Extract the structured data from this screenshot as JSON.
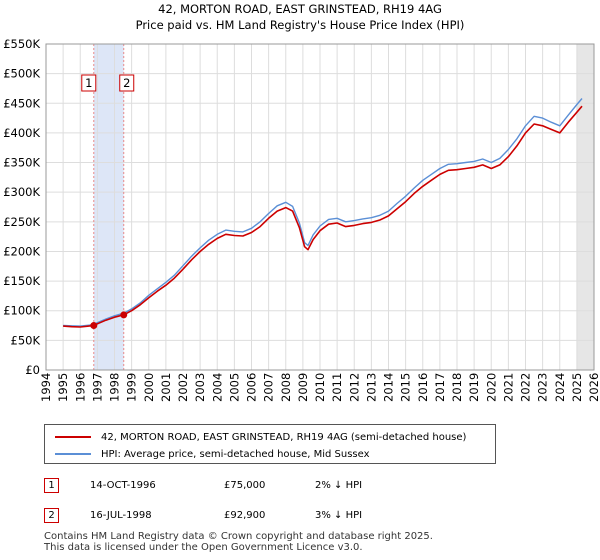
{
  "chart_data": {
    "type": "line",
    "title": "42, MORTON ROAD, EAST GRINSTEAD, RH19 4AG",
    "subtitle": "Price paid vs. HM Land Registry's House Price Index (HPI)",
    "xlim": [
      1994,
      2026
    ],
    "ylim": [
      0,
      550000
    ],
    "x_ticks": [
      "1994",
      "1995",
      "1996",
      "1997",
      "1998",
      "1999",
      "2000",
      "2001",
      "2002",
      "2003",
      "2004",
      "2005",
      "2006",
      "2007",
      "2008",
      "2009",
      "2010",
      "2011",
      "2012",
      "2013",
      "2014",
      "2015",
      "2016",
      "2017",
      "2018",
      "2019",
      "2020",
      "2021",
      "2022",
      "2023",
      "2024",
      "2025",
      "2026"
    ],
    "y_ticks": [
      {
        "value": 0,
        "label": "£0"
      },
      {
        "value": 50000,
        "label": "£50K"
      },
      {
        "value": 100000,
        "label": "£100K"
      },
      {
        "value": 150000,
        "label": "£150K"
      },
      {
        "value": 200000,
        "label": "£200K"
      },
      {
        "value": 250000,
        "label": "£250K"
      },
      {
        "value": 300000,
        "label": "£300K"
      },
      {
        "value": 350000,
        "label": "£350K"
      },
      {
        "value": 400000,
        "label": "£400K"
      },
      {
        "value": 450000,
        "label": "£450K"
      },
      {
        "value": 500000,
        "label": "£500K"
      },
      {
        "value": 550000,
        "label": "£550K"
      }
    ],
    "grid": true,
    "legend_position": "bottom",
    "series": [
      {
        "name": "42, MORTON ROAD, EAST GRINSTEAD, RH19 4AG (semi-detached house)",
        "color": "#cc0000",
        "points": [
          [
            1995.0,
            74000
          ],
          [
            1995.5,
            73000
          ],
          [
            1996.0,
            72500
          ],
          [
            1996.5,
            74000
          ],
          [
            1996.79,
            75000
          ],
          [
            1997.0,
            78000
          ],
          [
            1997.5,
            84000
          ],
          [
            1998.0,
            89000
          ],
          [
            1998.54,
            92900
          ],
          [
            1999.0,
            100000
          ],
          [
            1999.5,
            110000
          ],
          [
            2000.0,
            122000
          ],
          [
            2000.5,
            133000
          ],
          [
            2001.0,
            143000
          ],
          [
            2001.5,
            155000
          ],
          [
            2002.0,
            170000
          ],
          [
            2002.5,
            186000
          ],
          [
            2003.0,
            200000
          ],
          [
            2003.5,
            212000
          ],
          [
            2004.0,
            222000
          ],
          [
            2004.5,
            229000
          ],
          [
            2005.0,
            227000
          ],
          [
            2005.5,
            226000
          ],
          [
            2006.0,
            232000
          ],
          [
            2006.5,
            242000
          ],
          [
            2007.0,
            256000
          ],
          [
            2007.5,
            268000
          ],
          [
            2008.0,
            274000
          ],
          [
            2008.4,
            268000
          ],
          [
            2008.8,
            240000
          ],
          [
            2009.1,
            208000
          ],
          [
            2009.3,
            203000
          ],
          [
            2009.6,
            220000
          ],
          [
            2010.0,
            235000
          ],
          [
            2010.5,
            246000
          ],
          [
            2011.0,
            248000
          ],
          [
            2011.5,
            242000
          ],
          [
            2012.0,
            244000
          ],
          [
            2012.5,
            247000
          ],
          [
            2013.0,
            249000
          ],
          [
            2013.5,
            253000
          ],
          [
            2014.0,
            260000
          ],
          [
            2014.5,
            272000
          ],
          [
            2015.0,
            284000
          ],
          [
            2015.5,
            298000
          ],
          [
            2016.0,
            310000
          ],
          [
            2016.5,
            320000
          ],
          [
            2017.0,
            330000
          ],
          [
            2017.5,
            337000
          ],
          [
            2018.0,
            338000
          ],
          [
            2018.5,
            340000
          ],
          [
            2019.0,
            342000
          ],
          [
            2019.5,
            346000
          ],
          [
            2020.0,
            340000
          ],
          [
            2020.5,
            346000
          ],
          [
            2021.0,
            360000
          ],
          [
            2021.5,
            378000
          ],
          [
            2022.0,
            400000
          ],
          [
            2022.5,
            415000
          ],
          [
            2023.0,
            412000
          ],
          [
            2023.5,
            406000
          ],
          [
            2024.0,
            400000
          ],
          [
            2024.5,
            418000
          ],
          [
            2025.0,
            435000
          ],
          [
            2025.3,
            445000
          ]
        ]
      },
      {
        "name": "HPI: Average price, semi-detached house, Mid Sussex",
        "color": "#5b8fd6",
        "points": [
          [
            1995.0,
            75000
          ],
          [
            1995.5,
            74500
          ],
          [
            1996.0,
            74000
          ],
          [
            1996.5,
            75500
          ],
          [
            1996.79,
            76500
          ],
          [
            1997.0,
            80000
          ],
          [
            1997.5,
            86000
          ],
          [
            1998.0,
            91500
          ],
          [
            1998.54,
            95800
          ],
          [
            1999.0,
            103000
          ],
          [
            1999.5,
            113000
          ],
          [
            2000.0,
            126000
          ],
          [
            2000.5,
            137000
          ],
          [
            2001.0,
            148000
          ],
          [
            2001.5,
            160000
          ],
          [
            2002.0,
            176000
          ],
          [
            2002.5,
            192000
          ],
          [
            2003.0,
            206000
          ],
          [
            2003.5,
            219000
          ],
          [
            2004.0,
            229000
          ],
          [
            2004.5,
            236000
          ],
          [
            2005.0,
            234000
          ],
          [
            2005.5,
            233000
          ],
          [
            2006.0,
            239000
          ],
          [
            2006.5,
            250000
          ],
          [
            2007.0,
            264000
          ],
          [
            2007.5,
            277000
          ],
          [
            2008.0,
            283000
          ],
          [
            2008.4,
            276000
          ],
          [
            2008.8,
            248000
          ],
          [
            2009.1,
            215000
          ],
          [
            2009.3,
            210000
          ],
          [
            2009.6,
            228000
          ],
          [
            2010.0,
            243000
          ],
          [
            2010.5,
            254000
          ],
          [
            2011.0,
            256000
          ],
          [
            2011.5,
            250000
          ],
          [
            2012.0,
            252000
          ],
          [
            2012.5,
            255000
          ],
          [
            2013.0,
            257000
          ],
          [
            2013.5,
            261000
          ],
          [
            2014.0,
            268000
          ],
          [
            2014.5,
            281000
          ],
          [
            2015.0,
            293000
          ],
          [
            2015.5,
            307000
          ],
          [
            2016.0,
            320000
          ],
          [
            2016.5,
            330000
          ],
          [
            2017.0,
            340000
          ],
          [
            2017.5,
            347000
          ],
          [
            2018.0,
            348000
          ],
          [
            2018.5,
            350000
          ],
          [
            2019.0,
            352000
          ],
          [
            2019.5,
            356000
          ],
          [
            2020.0,
            350000
          ],
          [
            2020.5,
            357000
          ],
          [
            2021.0,
            372000
          ],
          [
            2021.5,
            390000
          ],
          [
            2022.0,
            412000
          ],
          [
            2022.5,
            428000
          ],
          [
            2023.0,
            425000
          ],
          [
            2023.5,
            418000
          ],
          [
            2024.0,
            412000
          ],
          [
            2024.5,
            430000
          ],
          [
            2025.0,
            448000
          ],
          [
            2025.3,
            458000
          ]
        ]
      }
    ],
    "transactions": [
      {
        "label": "1",
        "x": 1996.79,
        "price": 75000,
        "date": "14-OCT-1996",
        "price_label": "£75,000",
        "hpi_label": "2% ↓ HPI"
      },
      {
        "label": "2",
        "x": 1998.54,
        "price": 92900,
        "date": "16-JUL-1998",
        "price_label": "£92,900",
        "hpi_label": "3% ↓ HPI"
      }
    ],
    "forecast_from": 2025.0,
    "colors": {
      "sale_band": "#dde6f7",
      "future_band": "#e6e6e6",
      "marker_line": "#e88888"
    }
  },
  "footer": {
    "line1": "Contains HM Land Registry data © Crown copyright and database right 2025.",
    "line2": "This data is licensed under the Open Government Licence v3.0."
  }
}
